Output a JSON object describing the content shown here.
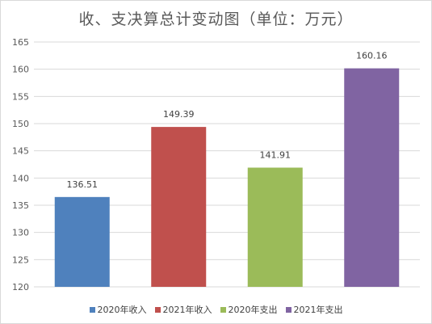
{
  "chart_data": {
    "type": "bar",
    "title": "收、支决算总计变动图（单位：万元）",
    "categories": [
      "2020年收入",
      "2021年收入",
      "2020年支出",
      "2021年支出"
    ],
    "values": [
      136.51,
      149.39,
      141.91,
      160.16
    ],
    "data_labels": [
      "136.51",
      "149.39",
      "141.91",
      "160.16"
    ],
    "colors": [
      "#4f81bd",
      "#c0504d",
      "#9bbb59",
      "#8064a2"
    ],
    "ylim": [
      120,
      165
    ],
    "yticks": [
      120,
      125,
      130,
      135,
      140,
      145,
      150,
      155,
      160,
      165
    ],
    "ytick_labels": [
      "120",
      "125",
      "130",
      "135",
      "140",
      "145",
      "150",
      "155",
      "160",
      "165"
    ],
    "grid": true,
    "legend_position": "bottom",
    "xlabel": "",
    "ylabel": ""
  }
}
